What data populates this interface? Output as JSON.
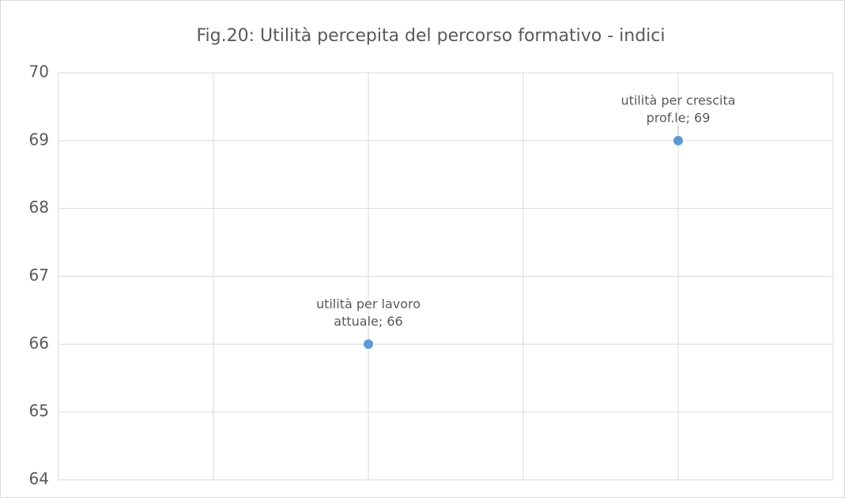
{
  "chart_data": {
    "type": "scatter",
    "title": "Fig.20: Utilità percepita del percorso formativo - indici",
    "x": [
      2,
      4
    ],
    "values": [
      66,
      69
    ],
    "value_labels": [
      [
        "utilità per lavoro",
        "attuale; 66"
      ],
      [
        "utilità per crescita",
        "prof.le; 69"
      ]
    ],
    "color": "#5b9bd5",
    "xlim": [
      0,
      5
    ],
    "xticks": [
      0,
      1,
      2,
      3,
      4,
      5
    ],
    "xtick_labels": false,
    "ylim": [
      64,
      70
    ],
    "yticks": [
      64,
      65,
      66,
      67,
      68,
      69,
      70
    ],
    "grid": true
  }
}
